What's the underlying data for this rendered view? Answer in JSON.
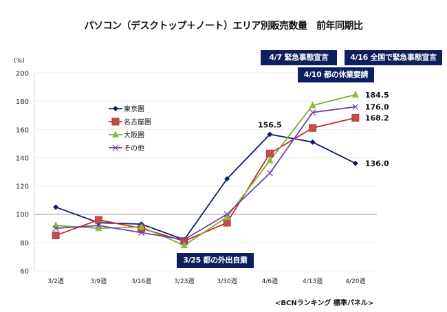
{
  "chart_data": {
    "type": "line",
    "title": "パソコン（デスクトップ＋ノート）エリア別販売数量　前年同期比",
    "ylabel": "(%)",
    "xlabel": "",
    "ylim": [
      60,
      200
    ],
    "yticks": [
      60,
      80,
      100,
      120,
      140,
      160,
      180,
      200
    ],
    "reference_line": 100,
    "grid": true,
    "legend_position": "upper-left-inside",
    "categories": [
      "3/2週",
      "3/9週",
      "3/16週",
      "3/23週",
      "3/30週",
      "4/6週",
      "4/13週",
      "4/20週"
    ],
    "series": [
      {
        "name": "東京圏",
        "color": "#0a1a6e",
        "marker": "diamond",
        "values": [
          105,
          94,
          93,
          82,
          125,
          156.5,
          151,
          136.0
        ]
      },
      {
        "name": "名古屋圏",
        "color": "#c0272d",
        "marker": "square",
        "values": [
          85,
          96,
          90,
          81,
          94,
          143,
          161,
          168.2
        ]
      },
      {
        "name": "大阪圏",
        "color": "#7ab030",
        "marker": "triangle",
        "values": [
          92,
          90,
          91,
          78,
          98,
          138,
          177,
          184.5
        ]
      },
      {
        "name": "その他",
        "color": "#7040a0",
        "marker": "x",
        "values": [
          90,
          92,
          87,
          82,
          100,
          129,
          172,
          176.0
        ]
      }
    ],
    "data_labels": [
      {
        "series": 0,
        "index": 5,
        "text": "156.5"
      },
      {
        "series": 0,
        "index": 7,
        "text": "136.0"
      },
      {
        "series": 1,
        "index": 7,
        "text": "168.2"
      },
      {
        "series": 2,
        "index": 7,
        "text": "184.5"
      },
      {
        "series": 3,
        "index": 7,
        "text": "176.0"
      }
    ],
    "annotations": [
      {
        "id": "ann1",
        "text": "4/7 緊急事態宣言"
      },
      {
        "id": "ann2",
        "text": "4/16 全国で緊急事態宣言"
      },
      {
        "id": "ann3",
        "text": "4/10 都の休業要請"
      },
      {
        "id": "ann4",
        "text": "3/25 都の外出自粛"
      }
    ],
    "source": "<BCNランキング 標準パネル>"
  }
}
